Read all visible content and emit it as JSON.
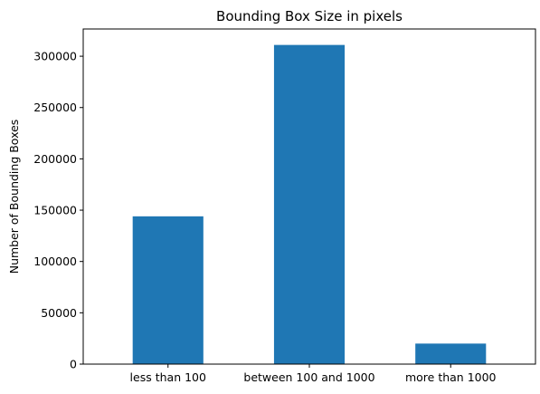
{
  "chart_data": {
    "type": "bar",
    "title": "Bounding Box Size in pixels",
    "xlabel": "",
    "ylabel": "Number of Bounding Boxes",
    "categories": [
      "less than 100",
      "between 100 and 1000",
      "more than 1000"
    ],
    "values": [
      144000,
      311000,
      20000
    ],
    "ylim": [
      0,
      326550
    ],
    "yticks": [
      0,
      50000,
      100000,
      150000,
      200000,
      250000,
      300000
    ],
    "ytick_labels": [
      "0",
      "50000",
      "100000",
      "150000",
      "200000",
      "250000",
      "300000"
    ],
    "grid": false,
    "bar_color": "#1f77b4"
  }
}
